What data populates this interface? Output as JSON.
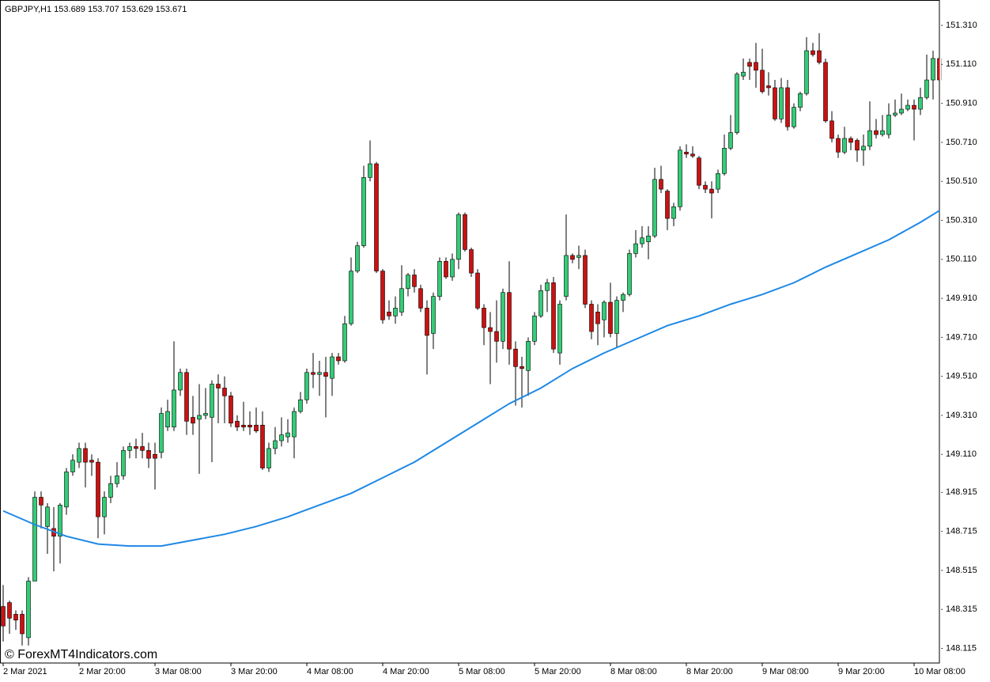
{
  "chart_data": {
    "type": "candlestick",
    "title": "GBPJPY,H1  153.689 153.707 153.629 153.671",
    "watermark": "© ForexMT4Indicators.com",
    "up_color": "#33cc77",
    "down_color": "#cc1111",
    "categories": [
      "2 Mar 2021",
      null,
      null,
      null,
      null,
      null,
      null,
      null,
      null,
      null,
      null,
      null,
      "2 Mar 20:00",
      null,
      null,
      null,
      null,
      null,
      null,
      null,
      null,
      null,
      null,
      null,
      "3 Mar 08:00",
      null,
      null,
      null,
      null,
      null,
      null,
      null,
      null,
      null,
      null,
      null,
      "3 Mar 20:00",
      null,
      null,
      null,
      null,
      null,
      null,
      null,
      null,
      null,
      null,
      null,
      "4 Mar 08:00",
      null,
      null,
      null,
      null,
      null,
      null,
      null,
      null,
      null,
      null,
      null,
      "4 Mar 20:00",
      null,
      null,
      null,
      null,
      null,
      null,
      null,
      null,
      null,
      null,
      null,
      "5 Mar 08:00",
      null,
      null,
      null,
      null,
      null,
      null,
      null,
      null,
      null,
      null,
      null,
      "5 Mar 20:00",
      null,
      null,
      null,
      null,
      null,
      null,
      null,
      null,
      null,
      null,
      null,
      "8 Mar 08:00",
      null,
      null,
      null,
      null,
      null,
      null,
      null,
      null,
      null,
      null,
      null,
      "8 Mar 20:00",
      null,
      null,
      null,
      null,
      null,
      null,
      null,
      null,
      null,
      null,
      null,
      "9 Mar 08:00",
      null,
      null,
      null,
      null,
      null,
      null,
      null,
      null,
      null,
      null,
      null,
      "9 Mar 20:00",
      null,
      null,
      null,
      null,
      null,
      null,
      null,
      null,
      null,
      null,
      null,
      "10 Mar 08:00",
      null,
      null,
      null,
      null
    ],
    "open": [
      148.33,
      148.35,
      148.29,
      148.29,
      148.17,
      148.46,
      148.89,
      148.74,
      148.73,
      148.69,
      148.84,
      149.02,
      149.07,
      149.14,
      149.08,
      149.07,
      148.79,
      148.89,
      148.96,
      149.0,
      149.13,
      149.15,
      149.15,
      149.13,
      149.11,
      149.12,
      149.25,
      149.25,
      149.44,
      149.53,
      149.3,
      149.29,
      149.31,
      149.3,
      149.47,
      149.45,
      149.41,
      149.28,
      149.26,
      149.26,
      149.26,
      149.26,
      149.04,
      149.14,
      149.18,
      149.2,
      149.2,
      149.33,
      149.39,
      149.53,
      149.52,
      149.53,
      149.5,
      149.61,
      149.59,
      149.78,
      150.05,
      150.18,
      150.53,
      150.6,
      150.05,
      149.84,
      149.82,
      149.84,
      149.96,
      150.03,
      149.96,
      149.86,
      149.73,
      149.92,
      150.1,
      150.02,
      150.11,
      150.34,
      150.16,
      150.04,
      149.86,
      149.76,
      149.74,
      149.69,
      149.94,
      149.65,
      149.56,
      149.54,
      149.69,
      149.82,
      149.95,
      149.99,
      149.63,
      149.92,
      150.13,
      150.12,
      150.13,
      149.88,
      149.84,
      149.8,
      149.89,
      149.73,
      149.9,
      149.93,
      150.14,
      150.19,
      150.2,
      150.23,
      150.52,
      150.46,
      150.32,
      150.38,
      150.66,
      150.65,
      150.63,
      150.49,
      150.47,
      150.47,
      150.55,
      150.68,
      150.76,
      151.05,
      151.12,
      151.12,
      151.08,
      151.0,
      150.99,
      150.83,
      150.99,
      150.79,
      150.89,
      150.96,
      151.18,
      151.18,
      151.12,
      150.82,
      150.73,
      150.66,
      150.73,
      150.72,
      150.67,
      150.69,
      150.77,
      150.75,
      150.75,
      150.85,
      150.86,
      150.88,
      150.9,
      150.88,
      150.94,
      151.03,
      151.14
    ],
    "high": [
      148.44,
      148.36,
      148.31,
      148.31,
      148.48,
      148.92,
      148.92,
      148.86,
      148.84,
      148.86,
      149.04,
      149.11,
      149.17,
      149.17,
      149.11,
      149.09,
      148.92,
      149.0,
      149.07,
      149.15,
      149.17,
      149.19,
      149.22,
      149.17,
      149.17,
      149.35,
      149.39,
      149.69,
      149.55,
      149.55,
      149.41,
      149.47,
      149.45,
      149.49,
      149.52,
      149.51,
      149.43,
      149.31,
      149.38,
      149.33,
      149.35,
      149.33,
      149.17,
      149.25,
      149.3,
      149.29,
      149.35,
      149.43,
      149.55,
      149.63,
      149.59,
      149.61,
      149.63,
      149.63,
      149.82,
      150.12,
      150.2,
      150.59,
      150.72,
      150.61,
      150.06,
      149.9,
      149.92,
      150.08,
      150.04,
      150.06,
      149.98,
      149.9,
      149.94,
      150.12,
      150.12,
      150.14,
      150.35,
      150.35,
      150.17,
      150.06,
      149.88,
      149.84,
      149.9,
      149.96,
      150.1,
      149.69,
      149.61,
      149.71,
      149.84,
      149.98,
      150.01,
      150.02,
      149.9,
      150.34,
      150.14,
      150.18,
      150.16,
      149.9,
      149.88,
      149.9,
      149.99,
      149.92,
      149.94,
      150.16,
      150.26,
      150.28,
      150.28,
      150.58,
      150.59,
      150.47,
      150.4,
      150.69,
      150.7,
      150.69,
      150.64,
      150.51,
      150.51,
      150.57,
      150.75,
      150.85,
      151.07,
      151.14,
      151.14,
      151.22,
      151.19,
      151.07,
      151.03,
      151.04,
      151.03,
      150.91,
      150.97,
      151.25,
      151.22,
      151.27,
      151.14,
      150.87,
      150.75,
      150.79,
      150.74,
      150.73,
      150.75,
      150.92,
      150.83,
      150.85,
      150.91,
      150.93,
      150.96,
      150.93,
      150.93,
      150.99,
      151.16,
      151.18,
      151.18
    ],
    "low": [
      148.15,
      148.19,
      148.21,
      148.13,
      148.13,
      148.46,
      148.73,
      148.6,
      148.51,
      148.55,
      148.8,
      149.0,
      149.04,
      148.94,
      149.0,
      148.68,
      148.7,
      148.86,
      148.94,
      148.98,
      149.09,
      149.09,
      149.09,
      149.04,
      148.93,
      149.09,
      149.23,
      149.23,
      149.41,
      149.21,
      149.21,
      149.01,
      149.29,
      149.07,
      149.27,
      149.27,
      149.25,
      149.23,
      149.23,
      149.21,
      149.22,
      149.03,
      149.02,
      149.11,
      149.15,
      149.17,
      149.09,
      149.32,
      149.37,
      149.45,
      149.41,
      149.3,
      149.41,
      149.57,
      149.58,
      149.77,
      150.04,
      150.17,
      150.51,
      150.04,
      149.78,
      149.8,
      149.78,
      149.82,
      149.92,
      149.94,
      149.84,
      149.52,
      149.65,
      149.9,
      150.01,
      150.0,
      150.06,
      150.15,
      150.02,
      149.85,
      149.67,
      149.47,
      149.58,
      149.65,
      149.57,
      149.36,
      149.35,
      149.41,
      149.67,
      149.81,
      149.84,
      149.63,
      149.57,
      149.9,
      150.09,
      150.06,
      149.86,
      149.7,
      149.67,
      149.71,
      149.71,
      149.66,
      149.84,
      149.92,
      150.12,
      150.17,
      150.11,
      150.22,
      150.45,
      150.26,
      150.28,
      150.36,
      150.63,
      150.63,
      150.47,
      150.45,
      150.32,
      150.45,
      150.54,
      150.67,
      150.75,
      151.03,
      151.03,
      150.99,
      150.96,
      150.95,
      150.82,
      150.81,
      150.77,
      150.78,
      150.87,
      150.95,
      151.15,
      151.11,
      150.81,
      150.71,
      150.63,
      150.65,
      150.67,
      150.61,
      150.59,
      150.67,
      150.73,
      150.74,
      150.73,
      150.84,
      150.85,
      150.87,
      150.72,
      150.85,
      150.93,
      150.93,
      150.93
    ],
    "close": [
      148.23,
      148.27,
      148.26,
      148.19,
      148.46,
      148.89,
      148.85,
      148.84,
      148.69,
      148.85,
      149.02,
      149.08,
      149.14,
      149.07,
      149.07,
      148.79,
      148.89,
      148.96,
      149.0,
      149.13,
      149.15,
      149.14,
      149.13,
      149.09,
      149.09,
      149.32,
      149.33,
      149.44,
      149.53,
      149.28,
      149.27,
      149.31,
      149.32,
      149.47,
      149.45,
      149.41,
      149.27,
      149.25,
      149.25,
      149.25,
      149.23,
      149.04,
      149.14,
      149.18,
      149.21,
      149.22,
      149.33,
      149.39,
      149.53,
      149.52,
      149.53,
      149.51,
      149.61,
      149.59,
      149.78,
      150.05,
      150.18,
      150.53,
      150.6,
      150.05,
      149.8,
      149.82,
      149.86,
      149.96,
      150.03,
      149.97,
      149.86,
      149.72,
      149.92,
      150.1,
      150.02,
      150.11,
      150.34,
      150.16,
      150.04,
      149.86,
      149.76,
      149.74,
      149.69,
      149.94,
      149.65,
      149.56,
      149.55,
      149.69,
      149.82,
      149.95,
      149.99,
      149.65,
      149.88,
      150.13,
      150.11,
      150.13,
      149.88,
      149.74,
      149.78,
      149.89,
      149.73,
      149.9,
      149.93,
      150.14,
      150.19,
      150.22,
      150.23,
      150.52,
      150.47,
      150.32,
      150.38,
      150.67,
      150.65,
      150.64,
      150.49,
      150.47,
      150.45,
      150.55,
      150.68,
      150.76,
      151.06,
      151.07,
      151.1,
      151.08,
      150.97,
      150.99,
      150.83,
      150.99,
      150.79,
      150.89,
      150.96,
      151.18,
      151.16,
      151.12,
      150.82,
      150.73,
      150.66,
      150.73,
      150.71,
      150.67,
      150.69,
      150.77,
      150.75,
      150.77,
      150.85,
      150.86,
      150.88,
      150.9,
      150.88,
      150.94,
      151.03,
      151.14,
      151.03
    ],
    "lines": [
      {
        "color": "#1e88e5",
        "x": [
          0,
          5,
          10,
          15,
          20,
          25,
          30,
          35,
          40,
          45,
          50,
          55,
          60,
          65,
          70,
          75,
          80,
          85,
          90,
          95,
          100,
          105,
          110,
          115,
          120,
          125,
          130,
          135,
          140,
          145,
          148
        ],
        "values": [
          148.82,
          148.75,
          148.69,
          148.65,
          148.64,
          148.64,
          148.67,
          148.7,
          148.74,
          148.79,
          148.85,
          148.91,
          148.99,
          149.07,
          149.17,
          149.27,
          149.37,
          149.45,
          149.55,
          149.63,
          149.7,
          149.77,
          149.82,
          149.88,
          149.93,
          149.99,
          150.07,
          150.14,
          150.21,
          150.3,
          150.36
        ]
      }
    ],
    "ylim": [
      148.04,
      151.44
    ],
    "yticks": [
      {
        "value": 151.31,
        "label": "151.310"
      },
      {
        "value": 151.11,
        "label": "151.110"
      },
      {
        "value": 150.91,
        "label": "150.910"
      },
      {
        "value": 150.71,
        "label": "150.710"
      },
      {
        "value": 150.51,
        "label": "150.510"
      },
      {
        "value": 150.31,
        "label": "150.310"
      },
      {
        "value": 150.11,
        "label": "150.110"
      },
      {
        "value": 149.91,
        "label": "149.910"
      },
      {
        "value": 149.71,
        "label": "149.710"
      },
      {
        "value": 149.51,
        "label": "149.510"
      },
      {
        "value": 149.31,
        "label": "149.310"
      },
      {
        "value": 149.11,
        "label": "149.110"
      },
      {
        "value": 148.915,
        "label": "148.915"
      },
      {
        "value": 148.715,
        "label": "148.715"
      },
      {
        "value": 148.515,
        "label": "148.515"
      },
      {
        "value": 148.315,
        "label": "148.315"
      },
      {
        "value": 148.115,
        "label": "148.115"
      }
    ]
  }
}
